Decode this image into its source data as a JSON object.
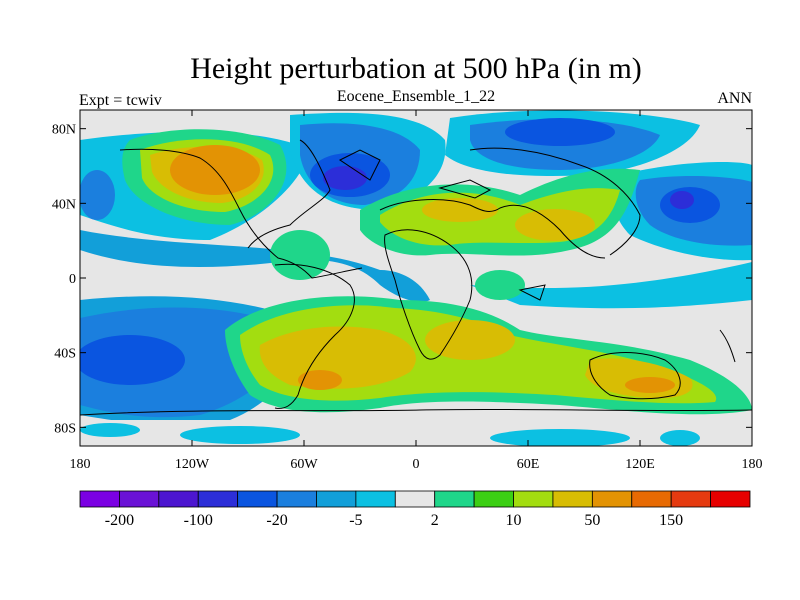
{
  "title": "Height perturbation at 500 hPa (in m)",
  "left_string": "Expt = tcwiv",
  "center_string": "Eocene_Ensemble_1_22",
  "right_string": "ANN",
  "chart_data": {
    "type": "heatmap",
    "projection": "cylindrical-equidistant",
    "x_ticks": [
      "180",
      "120W",
      "60W",
      "0",
      "60E",
      "120E",
      "180"
    ],
    "y_ticks": [
      "80N",
      "40N",
      "0",
      "40S",
      "80S"
    ],
    "x_range": [
      -180,
      180
    ],
    "y_range": [
      -90,
      90
    ],
    "colorbar": {
      "colors": [
        "#7b00e3",
        "#6a12d6",
        "#4c16d0",
        "#2c2ed8",
        "#0a55e0",
        "#1b7fde",
        "#129fd9",
        "#0cc0e2",
        "#e6e6e6",
        "#1fd68a",
        "#3ccf14",
        "#a3dd10",
        "#d8bd04",
        "#e39304",
        "#e76a03",
        "#e53a10",
        "#e60000"
      ],
      "labels": [
        "-200",
        "-100",
        "-20",
        "-5",
        "2",
        "10",
        "50",
        "150"
      ]
    }
  }
}
